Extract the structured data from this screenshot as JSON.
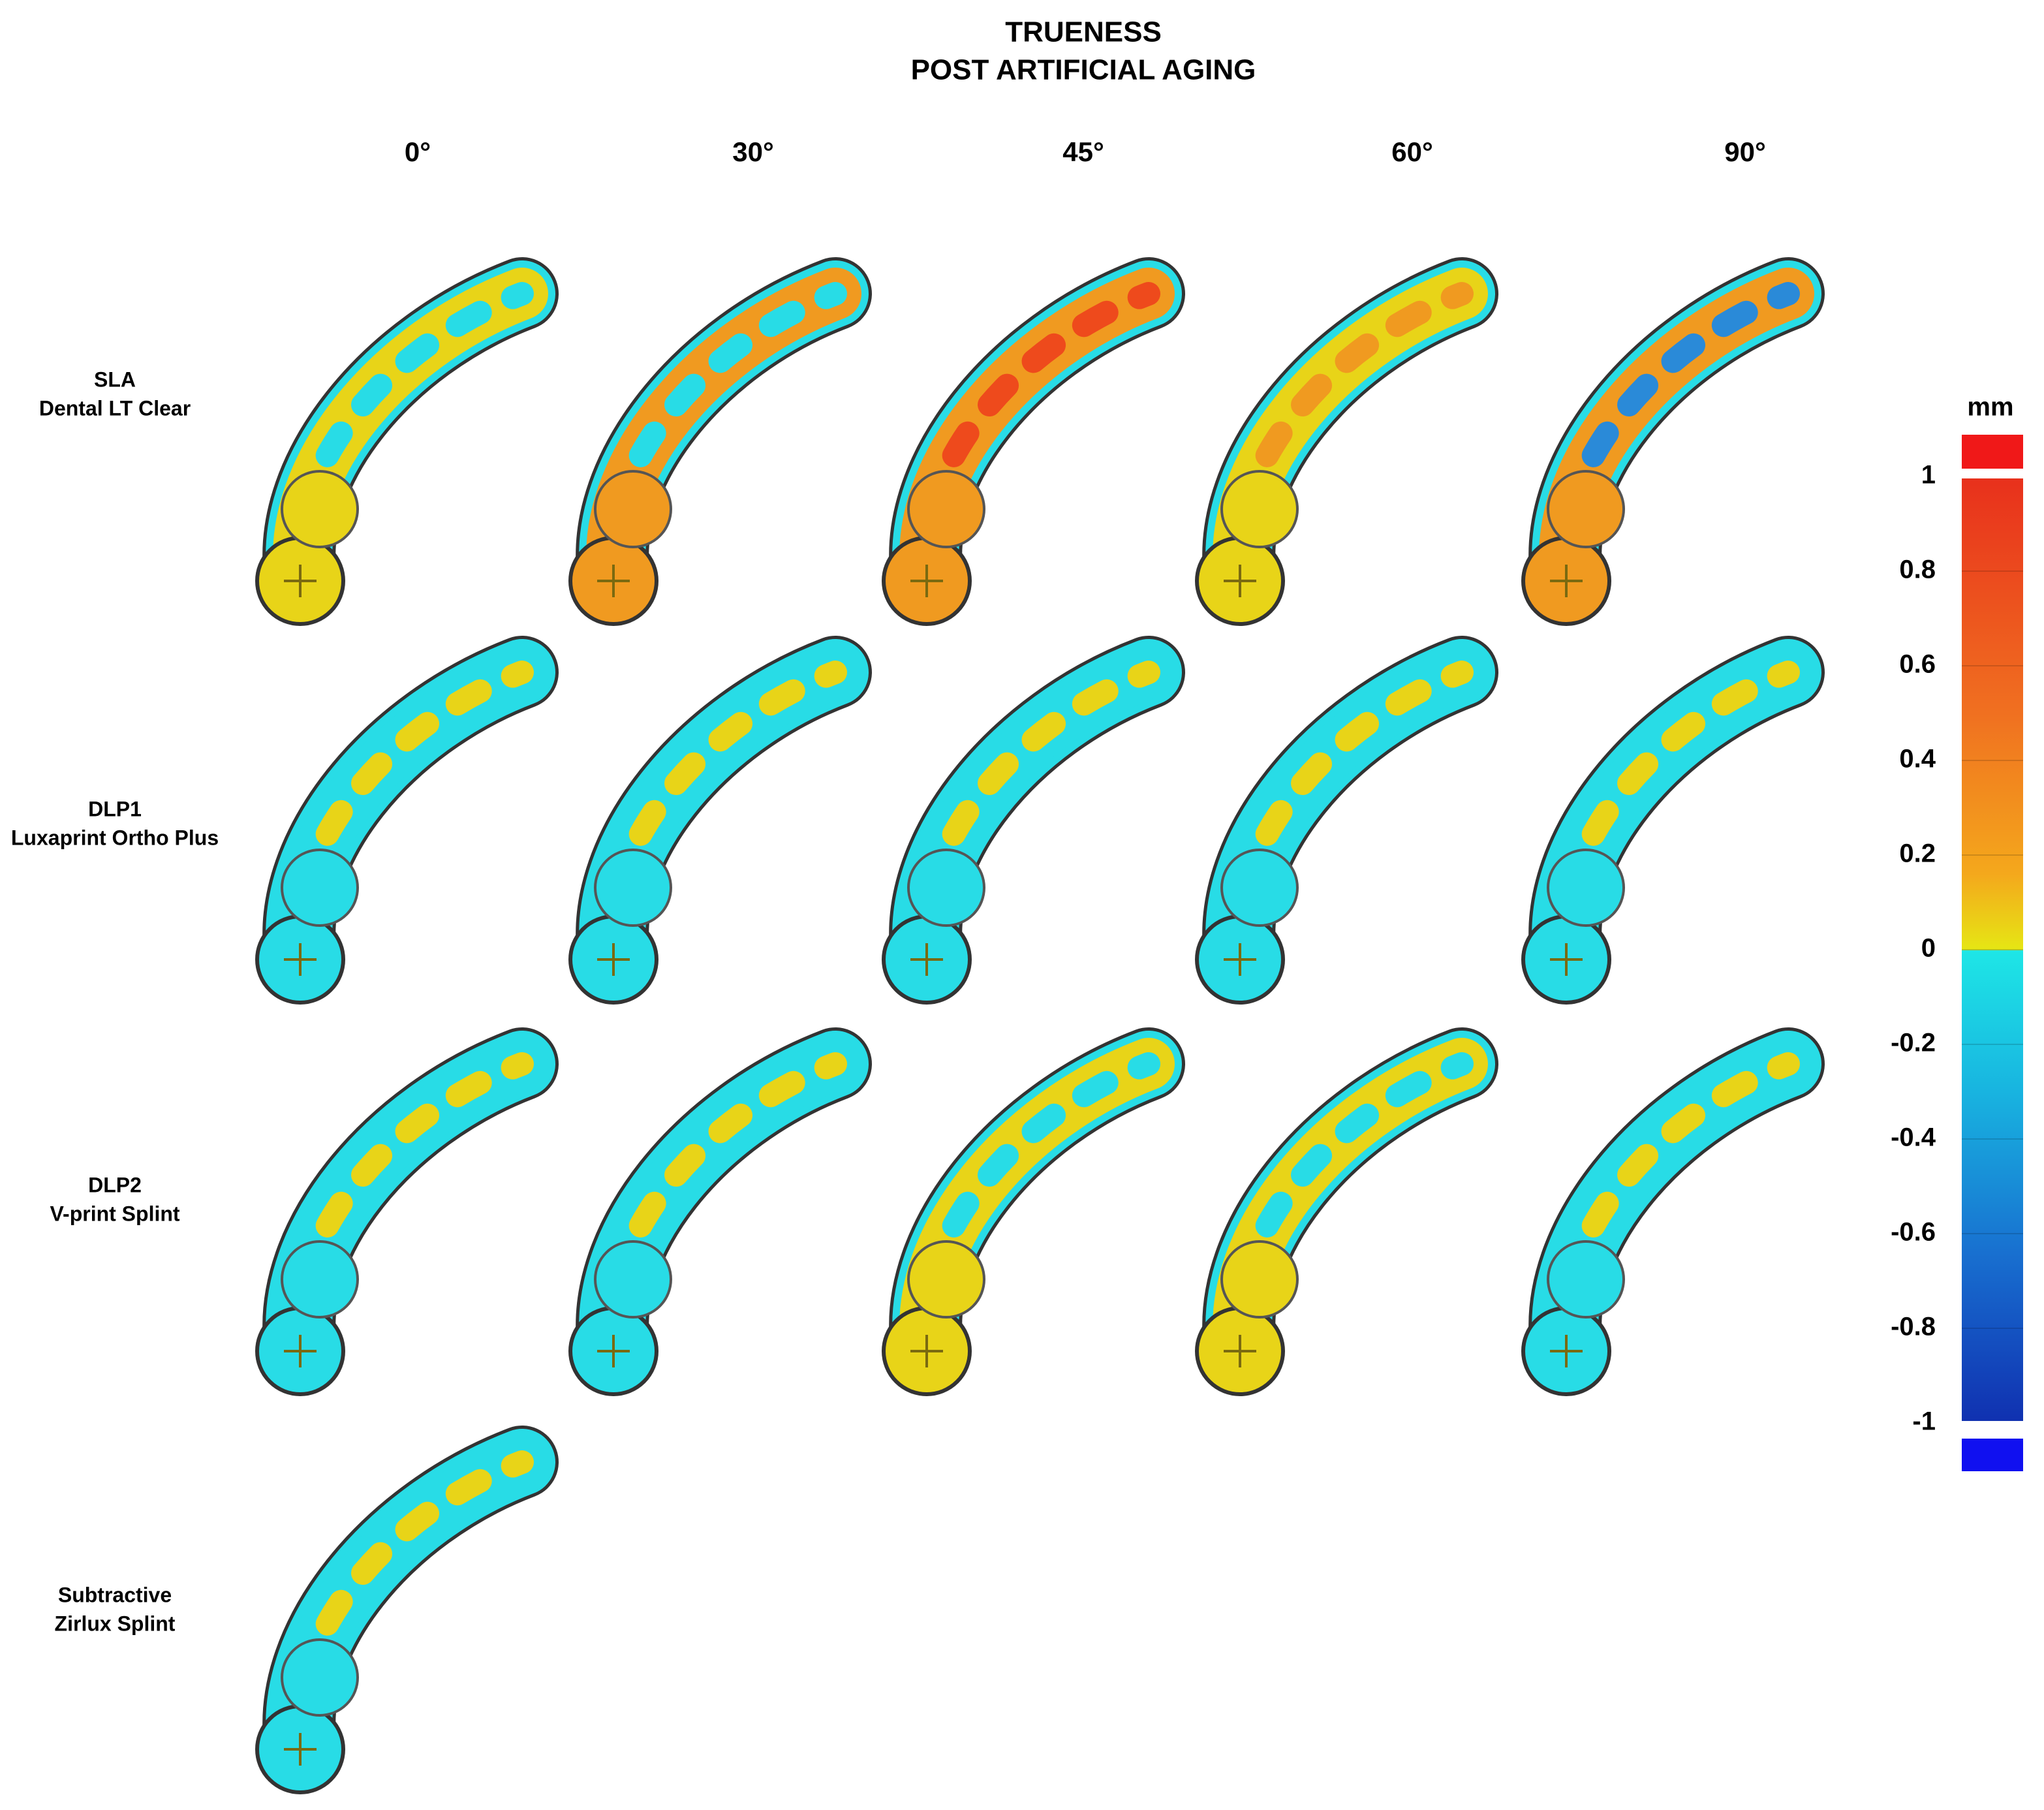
{
  "header": {
    "title_line1": "TRUENESS",
    "title_line2": "POST ARTIFICIAL AGING"
  },
  "columns": [
    "0°",
    "30°",
    "45°",
    "60°",
    "90°"
  ],
  "rows": [
    {
      "line1": "SLA",
      "line2": "Dental LT Clear"
    },
    {
      "line1": "DLP1",
      "line2": "Luxaprint Ortho Plus"
    },
    {
      "line1": "DLP2",
      "line2": "V-print Splint"
    },
    {
      "line1": "Subtractive",
      "line2": "Zirlux Splint"
    }
  ],
  "colorbar": {
    "unit": "mm",
    "ticks": [
      1,
      0.8,
      0.6,
      0.4,
      0.2,
      0,
      -0.2,
      -0.4,
      -0.6,
      -0.8,
      -1
    ]
  }
}
